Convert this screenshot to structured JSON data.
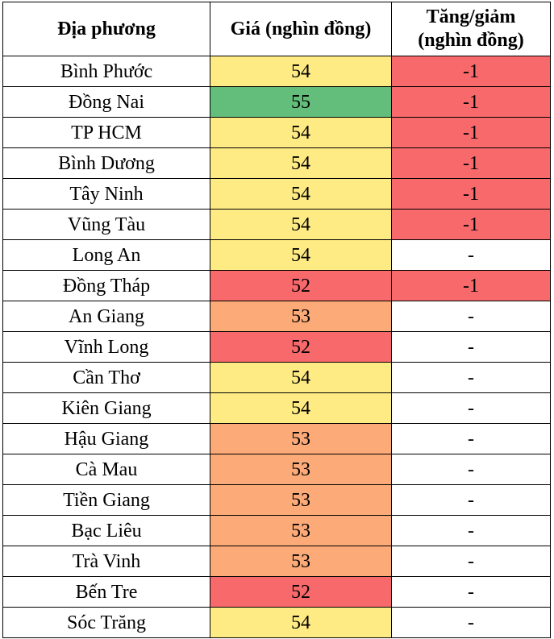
{
  "table": {
    "headers": {
      "region": "Địa phương",
      "price": "Giá (nghìn đồng)",
      "change_line1": "Tăng/giảm",
      "change_line2": "(nghìn đồng)"
    },
    "colors": {
      "yellow": "#ffeb84",
      "green": "#63be7b",
      "orange": "#fcaa78",
      "red": "#f8696b",
      "white": "#ffffff"
    },
    "rows": [
      {
        "region": "Bình Phước",
        "price": "54",
        "change": "-1",
        "price_color": "yellow",
        "change_color": "red"
      },
      {
        "region": "Đồng Nai",
        "price": "55",
        "change": "-1",
        "price_color": "green",
        "change_color": "red"
      },
      {
        "region": "TP HCM",
        "price": "54",
        "change": "-1",
        "price_color": "yellow",
        "change_color": "red"
      },
      {
        "region": "Bình Dương",
        "price": "54",
        "change": "-1",
        "price_color": "yellow",
        "change_color": "red"
      },
      {
        "region": "Tây Ninh",
        "price": "54",
        "change": "-1",
        "price_color": "yellow",
        "change_color": "red"
      },
      {
        "region": "Vũng Tàu",
        "price": "54",
        "change": "-1",
        "price_color": "yellow",
        "change_color": "red"
      },
      {
        "region": "Long An",
        "price": "54",
        "change": "-",
        "price_color": "yellow",
        "change_color": "white"
      },
      {
        "region": "Đồng Tháp",
        "price": "52",
        "change": "-1",
        "price_color": "red",
        "change_color": "red"
      },
      {
        "region": "An Giang",
        "price": "53",
        "change": "-",
        "price_color": "orange",
        "change_color": "white"
      },
      {
        "region": "Vĩnh Long",
        "price": "52",
        "change": "-",
        "price_color": "red",
        "change_color": "white"
      },
      {
        "region": "Cần Thơ",
        "price": "54",
        "change": "-",
        "price_color": "yellow",
        "change_color": "white"
      },
      {
        "region": "Kiên Giang",
        "price": "54",
        "change": "-",
        "price_color": "yellow",
        "change_color": "white"
      },
      {
        "region": "Hậu Giang",
        "price": "53",
        "change": "-",
        "price_color": "orange",
        "change_color": "white"
      },
      {
        "region": "Cà Mau",
        "price": "53",
        "change": "-",
        "price_color": "orange",
        "change_color": "white"
      },
      {
        "region": "Tiền Giang",
        "price": "53",
        "change": "-",
        "price_color": "orange",
        "change_color": "white"
      },
      {
        "region": "Bạc Liêu",
        "price": "53",
        "change": "-",
        "price_color": "orange",
        "change_color": "white"
      },
      {
        "region": "Trà Vinh",
        "price": "53",
        "change": "-",
        "price_color": "orange",
        "change_color": "white"
      },
      {
        "region": "Bến Tre",
        "price": "52",
        "change": "-",
        "price_color": "red",
        "change_color": "white"
      },
      {
        "region": "Sóc Trăng",
        "price": "54",
        "change": "-",
        "price_color": "yellow",
        "change_color": "white"
      }
    ]
  }
}
